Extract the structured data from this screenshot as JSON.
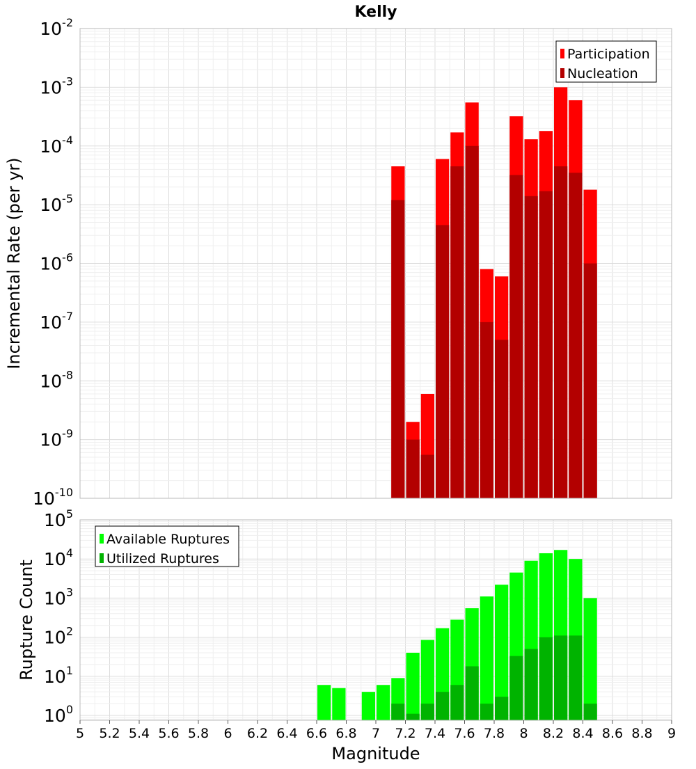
{
  "chart_data": [
    {
      "type": "bar",
      "title": "Kelly",
      "xlabel": "",
      "ylabel": "Incremental Rate (per yr)",
      "y_scale": "log",
      "ylim": [
        1e-10,
        0.01
      ],
      "xlim": [
        5,
        9
      ],
      "bin_width": 0.1,
      "grid": true,
      "legend_position": "top-right",
      "y_ticks": [
        {
          "base": "10",
          "exp": "-10",
          "value": 1e-10
        },
        {
          "base": "10",
          "exp": "-9",
          "value": 1e-09
        },
        {
          "base": "10",
          "exp": "-8",
          "value": 1e-08
        },
        {
          "base": "10",
          "exp": "-7",
          "value": 1e-07
        },
        {
          "base": "10",
          "exp": "-6",
          "value": 1e-06
        },
        {
          "base": "10",
          "exp": "-5",
          "value": 1e-05
        },
        {
          "base": "10",
          "exp": "-4",
          "value": 0.0001
        },
        {
          "base": "10",
          "exp": "-3",
          "value": 0.001
        },
        {
          "base": "10",
          "exp": "-2",
          "value": 0.01
        }
      ],
      "x": [
        7.15,
        7.25,
        7.35,
        7.45,
        7.55,
        7.65,
        7.75,
        7.85,
        7.95,
        8.05,
        8.15,
        8.25,
        8.35,
        8.45
      ],
      "series": [
        {
          "name": "Participation",
          "color": "#ff0000",
          "values": [
            4.5e-05,
            2e-09,
            6e-09,
            6e-05,
            0.00017,
            0.00055,
            8e-07,
            6e-07,
            0.00032,
            0.00013,
            0.00018,
            0.001,
            0.0006,
            1.8e-05
          ]
        },
        {
          "name": "Nucleation",
          "color": "#b30000",
          "values": [
            1.2e-05,
            1e-09,
            5.5e-10,
            4.5e-06,
            4.5e-05,
            0.0001,
            1e-07,
            5e-08,
            3.2e-05,
            1.4e-05,
            1.7e-05,
            4.5e-05,
            3.5e-05,
            1e-06
          ]
        }
      ]
    },
    {
      "type": "bar",
      "title": "",
      "xlabel": "Magnitude",
      "ylabel": "Rupture Count",
      "y_scale": "log",
      "ylim": [
        0.75,
        100000
      ],
      "xlim": [
        5,
        9
      ],
      "bin_width": 0.1,
      "grid": true,
      "legend_position": "top-left",
      "x_ticks": [
        "5",
        "5.2",
        "5.4",
        "5.6",
        "5.8",
        "6",
        "6.2",
        "6.4",
        "6.6",
        "6.8",
        "7",
        "7.2",
        "7.4",
        "7.6",
        "7.8",
        "8",
        "8.2",
        "8.4",
        "8.6",
        "8.8",
        "9"
      ],
      "y_ticks": [
        {
          "base": "10",
          "exp": "0",
          "value": 1
        },
        {
          "base": "10",
          "exp": "1",
          "value": 10
        },
        {
          "base": "10",
          "exp": "2",
          "value": 100
        },
        {
          "base": "10",
          "exp": "3",
          "value": 1000
        },
        {
          "base": "10",
          "exp": "4",
          "value": 10000
        },
        {
          "base": "10",
          "exp": "5",
          "value": 100000
        }
      ],
      "x": [
        6.65,
        6.75,
        6.95,
        7.05,
        7.15,
        7.25,
        7.35,
        7.45,
        7.55,
        7.65,
        7.75,
        7.85,
        7.95,
        8.05,
        8.15,
        8.25,
        8.35,
        8.45
      ],
      "series": [
        {
          "name": "Available Ruptures",
          "color": "#00ff00",
          "values": [
            6,
            5,
            4,
            6,
            9,
            40,
            85,
            170,
            280,
            550,
            1100,
            2200,
            4500,
            9000,
            14000,
            17000,
            10000,
            1000
          ]
        },
        {
          "name": "Utilized Ruptures",
          "color": "#00b300",
          "values": [
            null,
            null,
            null,
            null,
            2,
            1.1,
            2,
            4,
            6,
            18,
            2,
            3,
            33,
            50,
            100,
            110,
            110,
            2
          ]
        }
      ]
    }
  ]
}
